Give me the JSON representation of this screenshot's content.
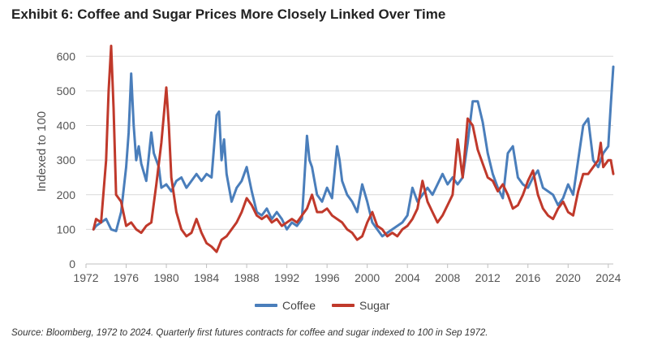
{
  "chart_data": {
    "type": "line",
    "title": "Exhibit 6: Coffee and Sugar Prices More Closely Linked Over Time",
    "xlabel": "",
    "ylabel": "Indexed to 100",
    "xlim": [
      1972,
      2024.5
    ],
    "ylim": [
      0,
      650
    ],
    "x_ticks": [
      1972,
      1976,
      1980,
      1984,
      1988,
      1992,
      1996,
      2000,
      2004,
      2008,
      2012,
      2016,
      2020,
      2024
    ],
    "y_ticks": [
      0,
      100,
      200,
      300,
      400,
      500,
      600
    ],
    "series": [
      {
        "name": "Coffee",
        "color": "#4a7ebb",
        "x": [
          1972.75,
          1973,
          1973.5,
          1974,
          1974.5,
          1975,
          1975.5,
          1976,
          1976.25,
          1976.5,
          1976.75,
          1977,
          1977.25,
          1977.5,
          1978,
          1978.5,
          1978.75,
          1979,
          1979.25,
          1979.5,
          1980,
          1980.5,
          1981,
          1981.5,
          1982,
          1982.5,
          1983,
          1983.5,
          1984,
          1984.5,
          1985,
          1985.25,
          1985.5,
          1985.75,
          1986,
          1986.5,
          1987,
          1987.5,
          1988,
          1988.5,
          1989,
          1989.5,
          1990,
          1990.5,
          1991,
          1991.5,
          1992,
          1992.5,
          1993,
          1993.5,
          1994,
          1994.25,
          1994.5,
          1995,
          1995.5,
          1996,
          1996.5,
          1997,
          1997.25,
          1997.5,
          1998,
          1998.5,
          1999,
          1999.5,
          2000,
          2000.5,
          2001,
          2001.5,
          2002,
          2002.5,
          2003,
          2003.5,
          2004,
          2004.5,
          2005,
          2005.5,
          2006,
          2006.5,
          2007,
          2007.5,
          2008,
          2008.5,
          2009,
          2009.5,
          2010,
          2010.5,
          2011,
          2011.5,
          2012,
          2012.5,
          2013,
          2013.5,
          2014,
          2014.5,
          2015,
          2015.5,
          2016,
          2016.5,
          2017,
          2017.5,
          2018,
          2018.5,
          2019,
          2019.5,
          2020,
          2020.5,
          2021,
          2021.5,
          2022,
          2022.5,
          2023,
          2023.5,
          2024,
          2024.25,
          2024.5
        ],
        "values": [
          100,
          110,
          120,
          130,
          100,
          95,
          150,
          280,
          380,
          550,
          400,
          300,
          340,
          290,
          240,
          380,
          320,
          300,
          280,
          220,
          230,
          210,
          240,
          250,
          220,
          240,
          260,
          240,
          260,
          250,
          430,
          440,
          300,
          360,
          260,
          180,
          220,
          240,
          280,
          210,
          150,
          140,
          160,
          130,
          150,
          130,
          100,
          120,
          110,
          130,
          370,
          300,
          280,
          200,
          180,
          220,
          190,
          340,
          300,
          240,
          200,
          180,
          150,
          230,
          180,
          120,
          100,
          80,
          90,
          100,
          110,
          120,
          140,
          220,
          180,
          200,
          220,
          200,
          230,
          260,
          230,
          250,
          230,
          250,
          350,
          470,
          470,
          410,
          320,
          260,
          220,
          190,
          320,
          340,
          250,
          230,
          220,
          250,
          270,
          220,
          210,
          200,
          170,
          190,
          230,
          200,
          300,
          400,
          420,
          300,
          280,
          320,
          340,
          460,
          570
        ]
      },
      {
        "name": "Sugar",
        "color": "#c0392b",
        "x": [
          1972.75,
          1973,
          1973.5,
          1974,
          1974.25,
          1974.5,
          1974.75,
          1975,
          1975.5,
          1976,
          1976.5,
          1977,
          1977.5,
          1978,
          1978.5,
          1979,
          1979.5,
          1980,
          1980.25,
          1980.5,
          1981,
          1981.5,
          1982,
          1982.5,
          1983,
          1983.5,
          1984,
          1984.5,
          1985,
          1985.5,
          1986,
          1986.5,
          1987,
          1987.5,
          1988,
          1988.5,
          1989,
          1989.5,
          1990,
          1990.5,
          1991,
          1991.5,
          1992,
          1992.5,
          1993,
          1993.5,
          1994,
          1994.5,
          1995,
          1995.5,
          1996,
          1996.5,
          1997,
          1997.5,
          1998,
          1998.5,
          1999,
          1999.5,
          2000,
          2000.5,
          2001,
          2001.5,
          2002,
          2002.5,
          2003,
          2003.5,
          2004,
          2004.5,
          2005,
          2005.5,
          2006,
          2006.5,
          2007,
          2007.5,
          2008,
          2008.5,
          2009,
          2009.5,
          2010,
          2010.5,
          2011,
          2011.5,
          2012,
          2012.5,
          2013,
          2013.5,
          2014,
          2014.5,
          2015,
          2015.5,
          2016,
          2016.5,
          2017,
          2017.5,
          2018,
          2018.5,
          2019,
          2019.5,
          2020,
          2020.5,
          2021,
          2021.5,
          2022,
          2022.5,
          2023,
          2023.25,
          2023.5,
          2024,
          2024.25,
          2024.5
        ],
        "values": [
          100,
          130,
          120,
          300,
          500,
          630,
          450,
          200,
          180,
          110,
          120,
          100,
          90,
          110,
          120,
          230,
          350,
          510,
          400,
          250,
          150,
          100,
          80,
          90,
          130,
          90,
          60,
          50,
          35,
          70,
          80,
          100,
          120,
          150,
          190,
          170,
          140,
          130,
          140,
          120,
          130,
          110,
          120,
          130,
          120,
          140,
          160,
          200,
          150,
          150,
          160,
          140,
          130,
          120,
          100,
          90,
          70,
          80,
          120,
          150,
          110,
          100,
          80,
          90,
          80,
          100,
          110,
          130,
          160,
          240,
          180,
          150,
          120,
          140,
          170,
          200,
          360,
          250,
          420,
          400,
          330,
          290,
          250,
          240,
          210,
          230,
          200,
          160,
          170,
          200,
          240,
          270,
          200,
          160,
          140,
          130,
          160,
          180,
          150,
          140,
          210,
          260,
          260,
          280,
          300,
          350,
          280,
          300,
          300,
          260
        ]
      }
    ],
    "legend": [
      "Coffee",
      "Sugar"
    ],
    "legend_placement": "bottom-center",
    "grid": true
  },
  "source": "Source: Bloomberg, 1972 to 2024. Quarterly first futures contracts for coffee and sugar indexed to 100 in Sep 1972."
}
